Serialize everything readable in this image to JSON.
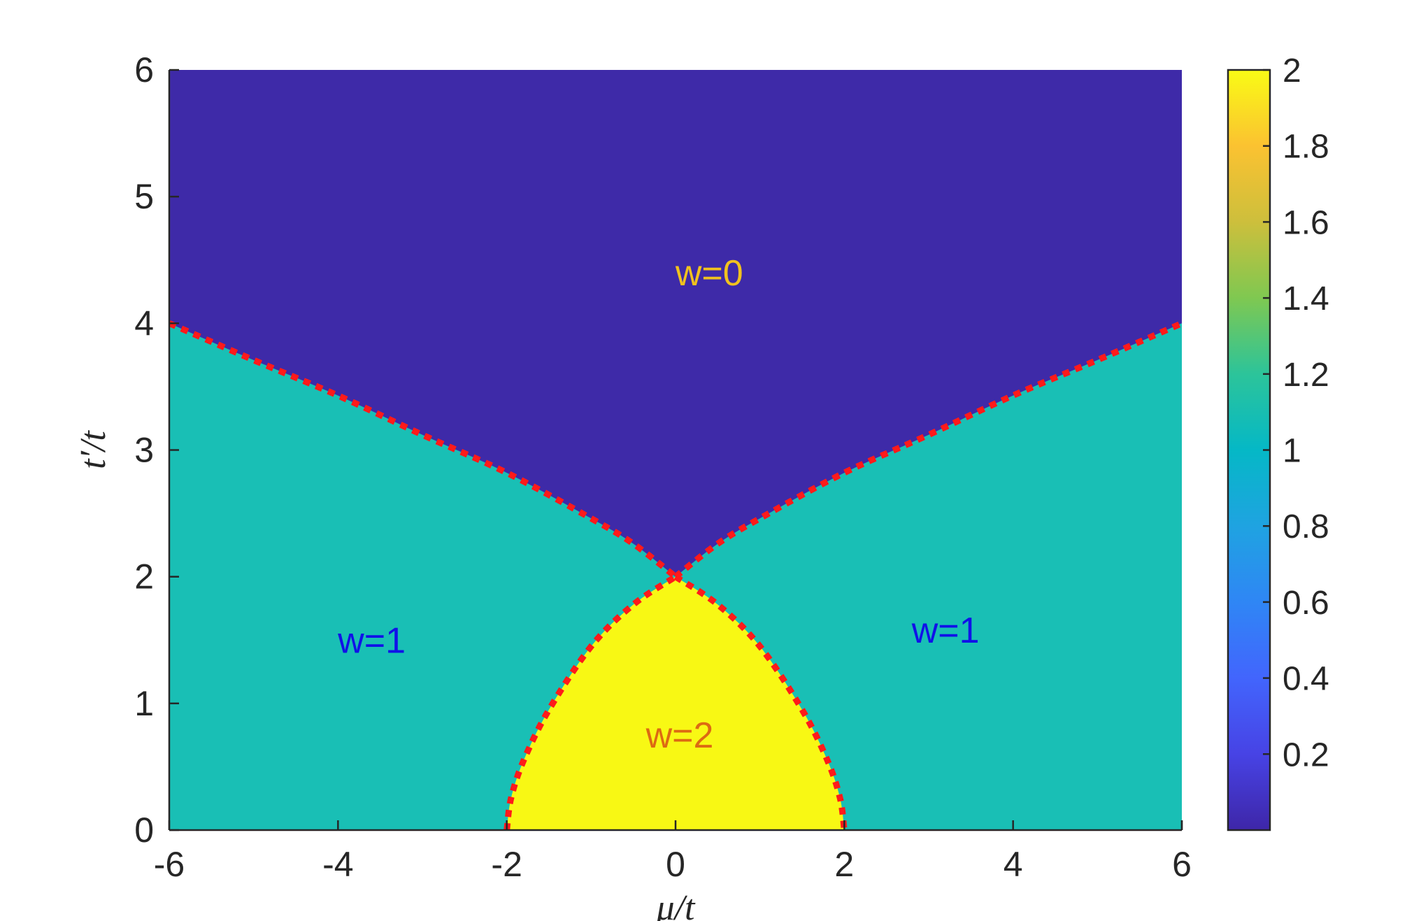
{
  "chart_data": {
    "type": "heatmap",
    "title": "",
    "xlabel": "μ/t",
    "ylabel": "t′/t",
    "xlim": [
      -6,
      6
    ],
    "ylim": [
      0,
      6
    ],
    "x_ticks": [
      {
        "value": -6,
        "label": "-6"
      },
      {
        "value": -4,
        "label": "-4"
      },
      {
        "value": -2,
        "label": "-2"
      },
      {
        "value": 0,
        "label": "0"
      },
      {
        "value": 2,
        "label": "2"
      },
      {
        "value": 4,
        "label": "4"
      },
      {
        "value": 6,
        "label": "6"
      }
    ],
    "y_ticks": [
      {
        "value": 0,
        "label": "0"
      },
      {
        "value": 1,
        "label": "1"
      },
      {
        "value": 2,
        "label": "2"
      },
      {
        "value": 3,
        "label": "3"
      },
      {
        "value": 4,
        "label": "4"
      },
      {
        "value": 5,
        "label": "5"
      },
      {
        "value": 6,
        "label": "6"
      }
    ],
    "colorbar": {
      "range": [
        0,
        2
      ],
      "ticks": [
        {
          "value": 0.2,
          "label": "0.2"
        },
        {
          "value": 0.4,
          "label": "0.4"
        },
        {
          "value": 0.6,
          "label": "0.6"
        },
        {
          "value": 0.8,
          "label": "0.8"
        },
        {
          "value": 1.0,
          "label": "1"
        },
        {
          "value": 1.2,
          "label": "1.2"
        },
        {
          "value": 1.4,
          "label": "1.4"
        },
        {
          "value": 1.6,
          "label": "1.6"
        },
        {
          "value": 1.8,
          "label": "1.8"
        },
        {
          "value": 2.0,
          "label": "2"
        }
      ],
      "stops": [
        {
          "value": 0.0,
          "color": "#3e26a8"
        },
        {
          "value": 0.1,
          "color": "#4743e5"
        },
        {
          "value": 0.2,
          "color": "#4265fd"
        },
        {
          "value": 0.3,
          "color": "#2f86f5"
        },
        {
          "value": 0.4,
          "color": "#1fa3e1"
        },
        {
          "value": 0.5,
          "color": "#05b8c6"
        },
        {
          "value": 0.6,
          "color": "#2cc49a"
        },
        {
          "value": 0.7,
          "color": "#7fc851"
        },
        {
          "value": 0.8,
          "color": "#cdbf3c"
        },
        {
          "value": 0.9,
          "color": "#fbc231"
        },
        {
          "value": 1.0,
          "color": "#f9fb15"
        }
      ]
    },
    "regions": [
      {
        "label": "w=0",
        "value": 0,
        "color": "#3e2aa8",
        "label_color": "#f1c21e",
        "label_at": [
          0.4,
          4.3
        ]
      },
      {
        "label": "w=1",
        "value": 1,
        "color": "#19bfb5",
        "label_color": "#1111e8",
        "label_at": [
          -3.6,
          1.4
        ]
      },
      {
        "label": "w=1",
        "value": 1,
        "color": "#19bfb5",
        "label_color": "#1111e8",
        "label_at": [
          3.2,
          1.48
        ]
      },
      {
        "label": "w=2",
        "value": 2,
        "color": "#f8f814",
        "label_color": "#dd6a12",
        "label_at": [
          0.05,
          0.65
        ]
      }
    ],
    "boundaries": {
      "description_free": true,
      "color": "#ff1a1a",
      "series": [
        {
          "x": [
            -6,
            -5,
            -4,
            -3,
            -2,
            -1,
            -0.5,
            0
          ],
          "y": [
            4.0,
            3.71,
            3.43,
            3.12,
            2.82,
            2.46,
            2.26,
            2.0
          ]
        },
        {
          "x": [
            0,
            0.5,
            1,
            2,
            3,
            4,
            5,
            6
          ],
          "y": [
            2.0,
            2.26,
            2.46,
            2.82,
            3.12,
            3.43,
            3.71,
            4.0
          ]
        },
        {
          "x": [
            -2,
            -1.95,
            -1.8,
            -1.5,
            -1.0,
            -0.5,
            0
          ],
          "y": [
            0.0,
            0.25,
            0.55,
            0.95,
            1.45,
            1.78,
            2.0
          ]
        },
        {
          "x": [
            0,
            0.5,
            1.0,
            1.5,
            1.8,
            1.95,
            2
          ],
          "y": [
            2.0,
            1.78,
            1.45,
            0.95,
            0.55,
            0.25,
            0.0
          ]
        }
      ]
    }
  }
}
